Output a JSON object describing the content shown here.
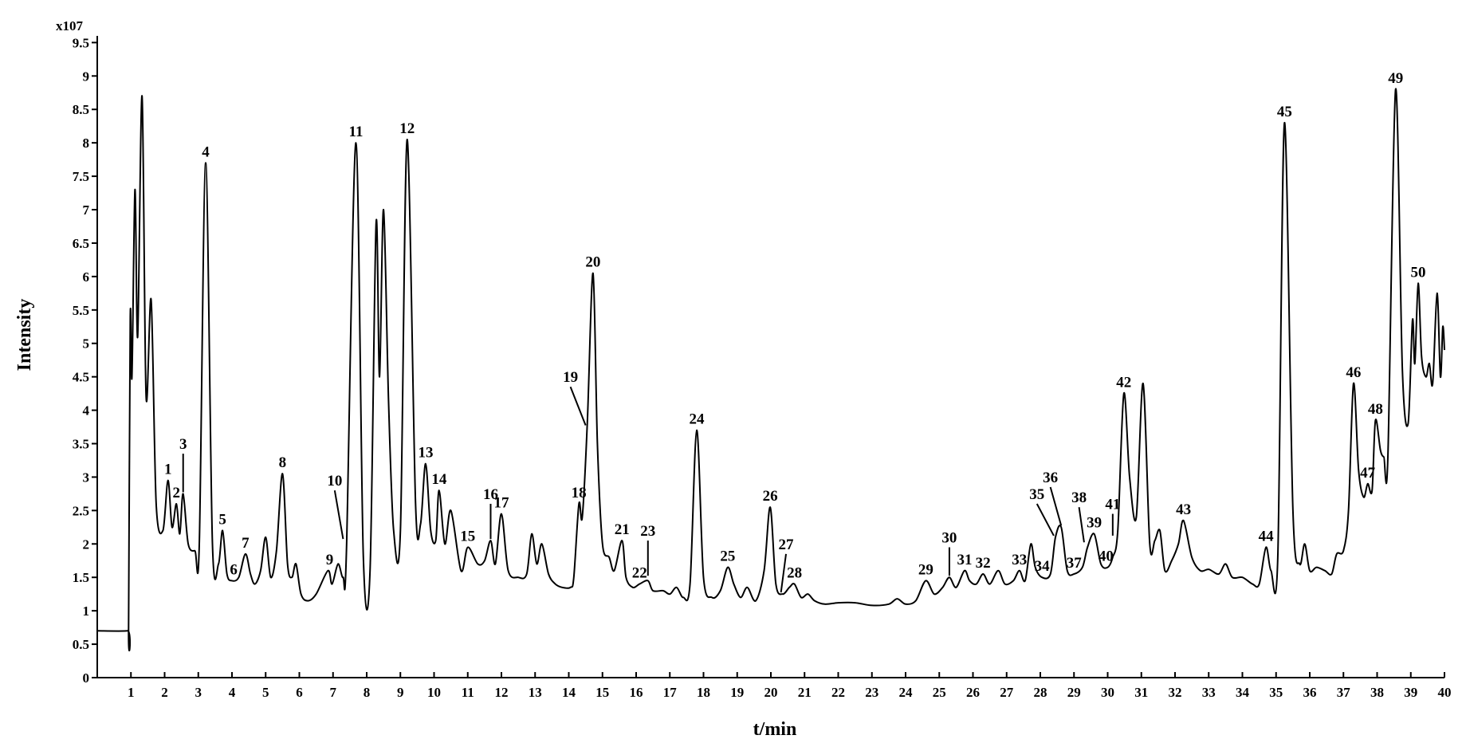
{
  "chart_data": {
    "type": "line",
    "title": "",
    "xlabel": "t/min",
    "ylabel": "Intensity",
    "y_multiplier_label": "x107",
    "xlim": [
      0,
      40
    ],
    "ylim": [
      0,
      9.6
    ],
    "grid": false,
    "x_ticks": [
      1,
      2,
      3,
      4,
      5,
      6,
      7,
      8,
      9,
      10,
      11,
      12,
      13,
      14,
      15,
      16,
      17,
      18,
      19,
      20,
      21,
      22,
      23,
      24,
      25,
      26,
      27,
      28,
      29,
      30,
      31,
      32,
      33,
      34,
      35,
      36,
      37,
      38,
      39,
      40
    ],
    "y_ticks": [
      0,
      0.5,
      1,
      1.5,
      2,
      2.5,
      3,
      3.5,
      4,
      4.5,
      5,
      5.5,
      6,
      6.5,
      7,
      7.5,
      8,
      8.5,
      9,
      9.5
    ],
    "series": [
      {
        "values": [
          [
            0,
            0.7
          ],
          [
            0.9,
            0.7
          ],
          [
            0.93,
            0.75
          ],
          [
            0.98,
            5.4
          ],
          [
            1.03,
            4.5
          ],
          [
            1.12,
            7.3
          ],
          [
            1.2,
            5.1
          ],
          [
            1.33,
            8.7
          ],
          [
            1.45,
            4.2
          ],
          [
            1.6,
            5.65
          ],
          [
            1.75,
            2.6
          ],
          [
            1.95,
            2.2
          ],
          [
            2.1,
            2.95
          ],
          [
            2.22,
            2.25
          ],
          [
            2.35,
            2.6
          ],
          [
            2.45,
            2.15
          ],
          [
            2.55,
            2.75
          ],
          [
            2.7,
            2.0
          ],
          [
            2.9,
            1.9
          ],
          [
            3.03,
            2.0
          ],
          [
            3.22,
            7.7
          ],
          [
            3.42,
            2.0
          ],
          [
            3.6,
            1.7
          ],
          [
            3.72,
            2.2
          ],
          [
            3.85,
            1.55
          ],
          [
            4.0,
            1.45
          ],
          [
            4.2,
            1.5
          ],
          [
            4.4,
            1.85
          ],
          [
            4.55,
            1.55
          ],
          [
            4.68,
            1.4
          ],
          [
            4.85,
            1.6
          ],
          [
            5.0,
            2.1
          ],
          [
            5.15,
            1.5
          ],
          [
            5.32,
            1.9
          ],
          [
            5.5,
            3.05
          ],
          [
            5.65,
            1.7
          ],
          [
            5.78,
            1.5
          ],
          [
            5.9,
            1.7
          ],
          [
            6.05,
            1.25
          ],
          [
            6.25,
            1.15
          ],
          [
            6.5,
            1.25
          ],
          [
            6.85,
            1.6
          ],
          [
            6.97,
            1.4
          ],
          [
            7.15,
            1.7
          ],
          [
            7.3,
            1.5
          ],
          [
            7.4,
            1.9
          ],
          [
            7.68,
            8.0
          ],
          [
            7.9,
            1.8
          ],
          [
            8.1,
            1.6
          ],
          [
            8.28,
            6.8
          ],
          [
            8.38,
            4.5
          ],
          [
            8.5,
            7.0
          ],
          [
            8.65,
            4.1
          ],
          [
            8.8,
            2.2
          ],
          [
            9.0,
            2.2
          ],
          [
            9.2,
            8.05
          ],
          [
            9.45,
            2.6
          ],
          [
            9.6,
            2.3
          ],
          [
            9.75,
            3.2
          ],
          [
            9.9,
            2.2
          ],
          [
            10.05,
            2.05
          ],
          [
            10.15,
            2.8
          ],
          [
            10.32,
            2.0
          ],
          [
            10.5,
            2.5
          ],
          [
            10.8,
            1.6
          ],
          [
            11.0,
            1.95
          ],
          [
            11.3,
            1.7
          ],
          [
            11.5,
            1.75
          ],
          [
            11.68,
            2.05
          ],
          [
            11.82,
            1.7
          ],
          [
            12.0,
            2.45
          ],
          [
            12.2,
            1.6
          ],
          [
            12.5,
            1.5
          ],
          [
            12.75,
            1.55
          ],
          [
            12.9,
            2.15
          ],
          [
            13.05,
            1.7
          ],
          [
            13.2,
            2.0
          ],
          [
            13.4,
            1.55
          ],
          [
            13.6,
            1.4
          ],
          [
            13.8,
            1.35
          ],
          [
            14.05,
            1.35
          ],
          [
            14.15,
            1.5
          ],
          [
            14.3,
            2.6
          ],
          [
            14.4,
            2.4
          ],
          [
            14.55,
            3.8
          ],
          [
            14.72,
            6.05
          ],
          [
            14.85,
            3.5
          ],
          [
            15.0,
            2.0
          ],
          [
            15.2,
            1.8
          ],
          [
            15.35,
            1.6
          ],
          [
            15.58,
            2.05
          ],
          [
            15.7,
            1.5
          ],
          [
            15.9,
            1.35
          ],
          [
            16.1,
            1.4
          ],
          [
            16.35,
            1.45
          ],
          [
            16.5,
            1.3
          ],
          [
            16.8,
            1.3
          ],
          [
            17.0,
            1.25
          ],
          [
            17.2,
            1.35
          ],
          [
            17.4,
            1.2
          ],
          [
            17.6,
            1.4
          ],
          [
            17.8,
            3.7
          ],
          [
            18.0,
            1.5
          ],
          [
            18.25,
            1.2
          ],
          [
            18.5,
            1.3
          ],
          [
            18.72,
            1.65
          ],
          [
            18.9,
            1.4
          ],
          [
            19.1,
            1.2
          ],
          [
            19.3,
            1.35
          ],
          [
            19.55,
            1.15
          ],
          [
            19.8,
            1.6
          ],
          [
            19.98,
            2.55
          ],
          [
            20.15,
            1.4
          ],
          [
            20.35,
            1.25
          ],
          [
            20.55,
            1.35
          ],
          [
            20.7,
            1.4
          ],
          [
            20.9,
            1.2
          ],
          [
            21.1,
            1.25
          ],
          [
            21.3,
            1.15
          ],
          [
            21.6,
            1.1
          ],
          [
            22.0,
            1.12
          ],
          [
            22.5,
            1.12
          ],
          [
            23.0,
            1.08
          ],
          [
            23.5,
            1.1
          ],
          [
            23.75,
            1.18
          ],
          [
            24.0,
            1.1
          ],
          [
            24.3,
            1.15
          ],
          [
            24.6,
            1.45
          ],
          [
            24.85,
            1.25
          ],
          [
            25.1,
            1.35
          ],
          [
            25.3,
            1.5
          ],
          [
            25.5,
            1.35
          ],
          [
            25.75,
            1.6
          ],
          [
            25.9,
            1.45
          ],
          [
            26.1,
            1.4
          ],
          [
            26.3,
            1.55
          ],
          [
            26.5,
            1.4
          ],
          [
            26.75,
            1.6
          ],
          [
            26.95,
            1.4
          ],
          [
            27.2,
            1.45
          ],
          [
            27.38,
            1.6
          ],
          [
            27.55,
            1.45
          ],
          [
            27.72,
            2.0
          ],
          [
            27.85,
            1.65
          ],
          [
            28.05,
            1.5
          ],
          [
            28.3,
            1.55
          ],
          [
            28.45,
            2.1
          ],
          [
            28.62,
            2.25
          ],
          [
            28.8,
            1.6
          ],
          [
            29.0,
            1.55
          ],
          [
            29.25,
            1.65
          ],
          [
            29.4,
            1.95
          ],
          [
            29.6,
            2.15
          ],
          [
            29.8,
            1.7
          ],
          [
            30.0,
            1.65
          ],
          [
            30.15,
            1.8
          ],
          [
            30.3,
            2.2
          ],
          [
            30.48,
            4.25
          ],
          [
            30.65,
            3.0
          ],
          [
            30.85,
            2.4
          ],
          [
            31.05,
            4.4
          ],
          [
            31.25,
            2.0
          ],
          [
            31.4,
            2.05
          ],
          [
            31.55,
            2.2
          ],
          [
            31.7,
            1.6
          ],
          [
            31.9,
            1.75
          ],
          [
            32.1,
            2.0
          ],
          [
            32.25,
            2.35
          ],
          [
            32.5,
            1.8
          ],
          [
            32.75,
            1.6
          ],
          [
            33.0,
            1.62
          ],
          [
            33.3,
            1.55
          ],
          [
            33.5,
            1.7
          ],
          [
            33.7,
            1.5
          ],
          [
            34.0,
            1.5
          ],
          [
            34.3,
            1.4
          ],
          [
            34.5,
            1.4
          ],
          [
            34.7,
            1.95
          ],
          [
            34.85,
            1.6
          ],
          [
            35.05,
            1.8
          ],
          [
            35.25,
            8.3
          ],
          [
            35.5,
            2.5
          ],
          [
            35.7,
            1.7
          ],
          [
            35.85,
            2.0
          ],
          [
            36.0,
            1.6
          ],
          [
            36.2,
            1.65
          ],
          [
            36.45,
            1.6
          ],
          [
            36.65,
            1.55
          ],
          [
            36.8,
            1.85
          ],
          [
            37.0,
            1.9
          ],
          [
            37.15,
            2.5
          ],
          [
            37.3,
            4.4
          ],
          [
            37.45,
            3.1
          ],
          [
            37.6,
            2.7
          ],
          [
            37.72,
            2.9
          ],
          [
            37.85,
            2.8
          ],
          [
            37.95,
            3.85
          ],
          [
            38.1,
            3.4
          ],
          [
            38.2,
            3.3
          ],
          [
            38.32,
            3.3
          ],
          [
            38.55,
            8.8
          ],
          [
            38.75,
            4.6
          ],
          [
            38.92,
            3.8
          ],
          [
            39.05,
            5.35
          ],
          [
            39.12,
            4.7
          ],
          [
            39.22,
            5.9
          ],
          [
            39.32,
            4.8
          ],
          [
            39.45,
            4.5
          ],
          [
            39.55,
            4.7
          ],
          [
            39.65,
            4.4
          ],
          [
            39.78,
            5.75
          ],
          [
            39.88,
            4.5
          ],
          [
            39.95,
            5.25
          ],
          [
            40.0,
            4.9
          ]
        ]
      }
    ],
    "peak_labels": [
      {
        "text": "1",
        "x": 2.1,
        "y": 2.95
      },
      {
        "text": "2",
        "x": 2.35,
        "y": 2.6
      },
      {
        "text": "3",
        "x": 2.55,
        "y": 2.75,
        "leader_top": 3.35
      },
      {
        "text": "4",
        "x": 3.22,
        "y": 7.7
      },
      {
        "text": "5",
        "x": 3.72,
        "y": 2.2
      },
      {
        "text": "6",
        "x": 4.05,
        "y": 1.45
      },
      {
        "text": "7",
        "x": 4.4,
        "y": 1.85
      },
      {
        "text": "8",
        "x": 5.5,
        "y": 3.05
      },
      {
        "text": "9",
        "x": 6.9,
        "y": 1.6
      },
      {
        "text": "10",
        "x": 7.3,
        "y": 2.05,
        "leader_top": 2.8,
        "leader_x": 7.05
      },
      {
        "text": "11",
        "x": 7.68,
        "y": 8.0
      },
      {
        "text": "12",
        "x": 9.2,
        "y": 8.05
      },
      {
        "text": "13",
        "x": 9.75,
        "y": 3.2
      },
      {
        "text": "14",
        "x": 10.15,
        "y": 2.8
      },
      {
        "text": "15",
        "x": 11.0,
        "y": 1.95
      },
      {
        "text": "16",
        "x": 11.68,
        "y": 2.05,
        "leader_top": 2.6
      },
      {
        "text": "17",
        "x": 12.0,
        "y": 2.45
      },
      {
        "text": "18",
        "x": 14.3,
        "y": 2.6
      },
      {
        "text": "19",
        "x": 14.5,
        "y": 3.75,
        "leader_top": 4.35,
        "leader_x": 14.05
      },
      {
        "text": "20",
        "x": 14.72,
        "y": 6.05
      },
      {
        "text": "21",
        "x": 15.58,
        "y": 2.05
      },
      {
        "text": "22",
        "x": 16.1,
        "y": 1.4
      },
      {
        "text": "23",
        "x": 16.35,
        "y": 1.5,
        "leader_top": 2.05
      },
      {
        "text": "24",
        "x": 17.8,
        "y": 3.7
      },
      {
        "text": "25",
        "x": 18.72,
        "y": 1.65
      },
      {
        "text": "26",
        "x": 19.98,
        "y": 2.55
      },
      {
        "text": "27",
        "x": 20.3,
        "y": 1.25,
        "leader_top": 1.85,
        "leader_x": 20.45
      },
      {
        "text": "28",
        "x": 20.7,
        "y": 1.4
      },
      {
        "text": "29",
        "x": 24.6,
        "y": 1.45
      },
      {
        "text": "30",
        "x": 25.3,
        "y": 1.5,
        "leader_top": 1.95
      },
      {
        "text": "31",
        "x": 25.75,
        "y": 1.6
      },
      {
        "text": "32",
        "x": 26.3,
        "y": 1.55
      },
      {
        "text": "33",
        "x": 27.38,
        "y": 1.6
      },
      {
        "text": "34",
        "x": 28.05,
        "y": 1.5
      },
      {
        "text": "35",
        "x": 28.4,
        "y": 2.1,
        "leader_top": 2.6,
        "leader_x": 27.9
      },
      {
        "text": "36",
        "x": 28.62,
        "y": 2.25,
        "leader_top": 2.85,
        "leader_x": 28.3
      },
      {
        "text": "37",
        "x": 29.0,
        "y": 1.55
      },
      {
        "text": "38",
        "x": 29.3,
        "y": 2.0,
        "leader_top": 2.55,
        "leader_x": 29.15
      },
      {
        "text": "39",
        "x": 29.6,
        "y": 2.15
      },
      {
        "text": "40",
        "x": 29.95,
        "y": 1.65
      },
      {
        "text": "41",
        "x": 30.15,
        "y": 2.1,
        "leader_top": 2.45
      },
      {
        "text": "42",
        "x": 30.48,
        "y": 4.25
      },
      {
        "text": "43",
        "x": 32.25,
        "y": 2.35
      },
      {
        "text": "44",
        "x": 34.7,
        "y": 1.95
      },
      {
        "text": "45",
        "x": 35.25,
        "y": 8.3
      },
      {
        "text": "46",
        "x": 37.3,
        "y": 4.4
      },
      {
        "text": "47",
        "x": 37.72,
        "y": 2.9
      },
      {
        "text": "48",
        "x": 37.95,
        "y": 3.85
      },
      {
        "text": "49",
        "x": 38.55,
        "y": 8.8
      },
      {
        "text": "50",
        "x": 39.22,
        "y": 5.9
      }
    ]
  }
}
